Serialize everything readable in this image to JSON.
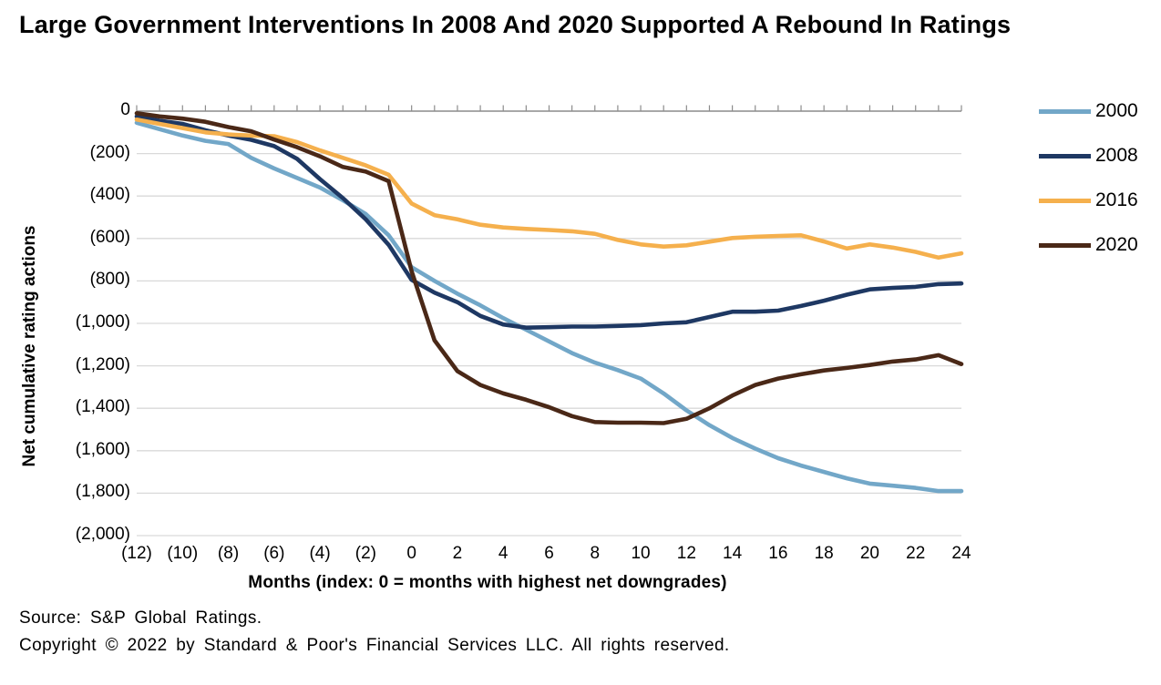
{
  "chart_data": {
    "type": "line",
    "title": "Large Government Interventions In 2008 And 2020 Supported A Rebound In Ratings",
    "xlabel": "Months (index: 0 = months with highest net downgrades)",
    "ylabel": "Net cumulative rating actions",
    "xlim": [
      -12,
      24
    ],
    "ylim": [
      -2000,
      0
    ],
    "grid": true,
    "legend_position": "right",
    "grid_color": "#d9d9d9",
    "axis_color": "#8c8c8c",
    "x": [
      -12,
      -11,
      -10,
      -9,
      -8,
      -7,
      -6,
      -5,
      -4,
      -3,
      -2,
      -1,
      0,
      1,
      2,
      3,
      4,
      5,
      6,
      7,
      8,
      9,
      10,
      11,
      12,
      13,
      14,
      15,
      16,
      17,
      18,
      19,
      20,
      21,
      22,
      23,
      24
    ],
    "x_ticks": [
      -12,
      -10,
      -8,
      -6,
      -4,
      -2,
      0,
      2,
      4,
      6,
      8,
      10,
      12,
      14,
      16,
      18,
      20,
      22,
      24
    ],
    "x_tick_labels": [
      "(12)",
      "(10)",
      "(8)",
      "(6)",
      "(4)",
      "(2)",
      "0",
      "2",
      "4",
      "6",
      "8",
      "10",
      "12",
      "14",
      "16",
      "18",
      "20",
      "22",
      "24"
    ],
    "y_ticks": [
      0,
      -200,
      -400,
      -600,
      -800,
      -1000,
      -1200,
      -1400,
      -1600,
      -1800,
      -2000
    ],
    "y_tick_labels": [
      "0",
      "(200)",
      "(400)",
      "(600)",
      "(800)",
      "(1,000)",
      "(1,200)",
      "(1,400)",
      "(1,600)",
      "(1,800)",
      "(2,000)"
    ],
    "series": [
      {
        "name": "2000",
        "color": "#72A7C8",
        "values": [
          -55,
          -85,
          -115,
          -140,
          -155,
          -220,
          -270,
          -315,
          -360,
          -420,
          -485,
          -585,
          -735,
          -800,
          -860,
          -915,
          -975,
          -1030,
          -1085,
          -1140,
          -1185,
          -1220,
          -1260,
          -1330,
          -1410,
          -1480,
          -1540,
          -1590,
          -1635,
          -1670,
          -1700,
          -1730,
          -1755,
          -1765,
          -1775,
          -1790,
          -1790
        ]
      },
      {
        "name": "2008",
        "color": "#1E3863",
        "values": [
          -25,
          -45,
          -60,
          -90,
          -115,
          -135,
          -165,
          -225,
          -320,
          -410,
          -510,
          -630,
          -795,
          -855,
          -900,
          -965,
          -1005,
          -1020,
          -1018,
          -1015,
          -1015,
          -1012,
          -1008,
          -1000,
          -995,
          -970,
          -945,
          -945,
          -940,
          -918,
          -893,
          -865,
          -840,
          -833,
          -828,
          -815,
          -812
        ]
      },
      {
        "name": "2016",
        "color": "#F5B04D",
        "values": [
          -40,
          -60,
          -80,
          -100,
          -110,
          -115,
          -118,
          -146,
          -185,
          -220,
          -256,
          -300,
          -435,
          -490,
          -510,
          -535,
          -548,
          -555,
          -560,
          -566,
          -578,
          -607,
          -628,
          -638,
          -632,
          -615,
          -598,
          -592,
          -588,
          -585,
          -614,
          -647,
          -628,
          -643,
          -663,
          -690,
          -670
        ]
      },
      {
        "name": "2020",
        "color": "#4A2817",
        "values": [
          -10,
          -25,
          -35,
          -50,
          -75,
          -95,
          -134,
          -170,
          -213,
          -263,
          -285,
          -330,
          -755,
          -1080,
          -1225,
          -1290,
          -1330,
          -1360,
          -1395,
          -1437,
          -1465,
          -1468,
          -1468,
          -1470,
          -1450,
          -1400,
          -1340,
          -1290,
          -1260,
          -1240,
          -1222,
          -1210,
          -1196,
          -1180,
          -1170,
          -1150,
          -1192
        ]
      }
    ]
  },
  "footer": {
    "source": "Source: S&P Global Ratings.",
    "copyright": "Copyright © 2022 by Standard & Poor's Financial Services LLC. All rights reserved."
  }
}
